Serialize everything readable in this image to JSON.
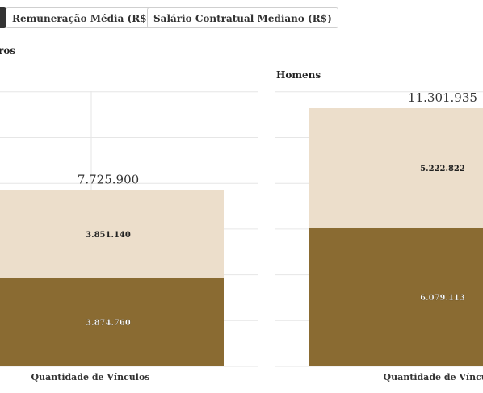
{
  "tabs": [
    {
      "label": "",
      "active": true
    },
    {
      "label": "Remuneração Média (R$)",
      "active": false
    },
    {
      "label": "Salário Contratual Mediano (R$)",
      "active": false
    }
  ],
  "colors": {
    "light_bar": "#ecdecb",
    "dark_bar": "#8a6b32",
    "grid": "#e6e6e6",
    "text": "#333333"
  },
  "chart_data": [
    {
      "type": "bar",
      "stacked": true,
      "title": "ros",
      "categories": [
        "Quantidade de Vínculos"
      ],
      "series": [
        {
          "values": [
            3874760
          ]
        },
        {
          "values": [
            3851140
          ]
        }
      ],
      "data_labels": [
        "3.874.760",
        "3.851.140"
      ],
      "total_label": "7.725.900",
      "ylim": [
        0,
        12000000
      ],
      "grid": true
    },
    {
      "type": "bar",
      "stacked": true,
      "title": "Homens",
      "categories": [
        "Quantidade de Vínculos"
      ],
      "series": [
        {
          "values": [
            6079113
          ]
        },
        {
          "values": [
            5222822
          ]
        }
      ],
      "data_labels": [
        "6.079.113",
        "5.222.822"
      ],
      "total_label": "11.301.935",
      "ylim": [
        0,
        12000000
      ],
      "grid": true
    }
  ]
}
